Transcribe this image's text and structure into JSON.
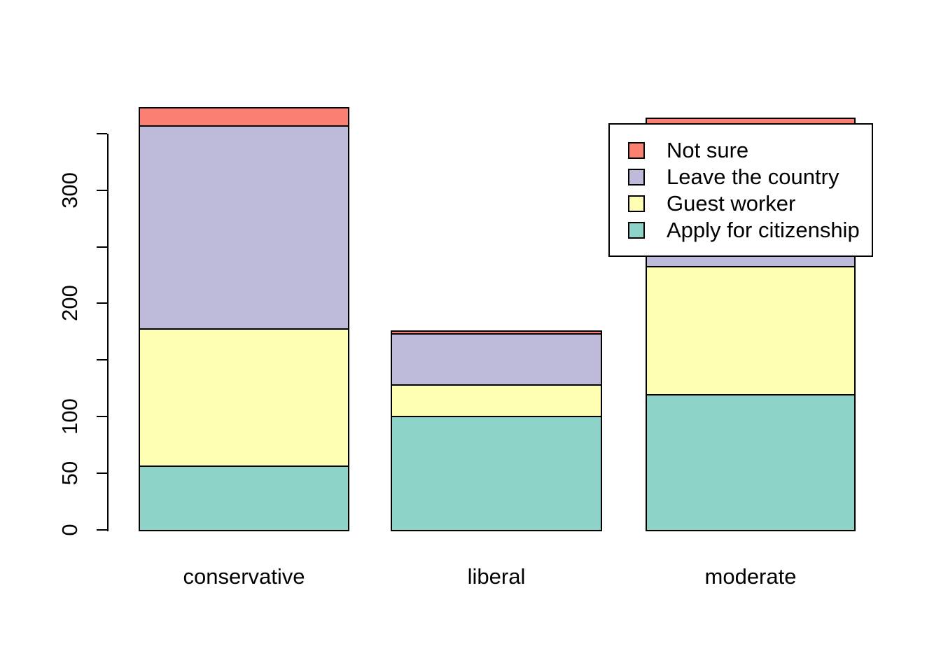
{
  "figure": {
    "background": "#ffffff",
    "text_color": "#000000"
  },
  "chart_data": {
    "type": "bar",
    "stacked": true,
    "title": "",
    "xlabel": "",
    "ylabel": "",
    "categories": [
      "conservative",
      "liberal",
      "moderate"
    ],
    "series": [
      {
        "name": "Apply for citizenship",
        "color": "#8DD3C7",
        "values": [
          57,
          101,
          120
        ]
      },
      {
        "name": "Guest worker",
        "color": "#FFFFB3",
        "values": [
          121,
          28,
          113
        ]
      },
      {
        "name": "Leave the country",
        "color": "#BEBADA",
        "values": [
          179,
          45,
          126
        ]
      },
      {
        "name": "Not sure",
        "color": "#FB8072",
        "values": [
          15,
          1,
          4
        ]
      }
    ],
    "stack_totals": [
      372,
      175,
      363
    ],
    "y_axis": {
      "range": [
        0,
        350
      ],
      "tick_values": [
        0,
        50,
        100,
        150,
        200,
        250,
        300,
        350
      ],
      "tick_labels_shown": [
        "0",
        "50",
        "100",
        "200",
        "300"
      ],
      "grid": false
    },
    "legend": {
      "position": "top-right",
      "background": "#ffffff",
      "border_color": "#000000",
      "items": [
        {
          "label": "Not sure",
          "color": "#FB8072"
        },
        {
          "label": "Leave the country",
          "color": "#BEBADA"
        },
        {
          "label": "Guest worker",
          "color": "#FFFFB3"
        },
        {
          "label": "Apply for citizenship",
          "color": "#8DD3C7"
        }
      ]
    }
  }
}
